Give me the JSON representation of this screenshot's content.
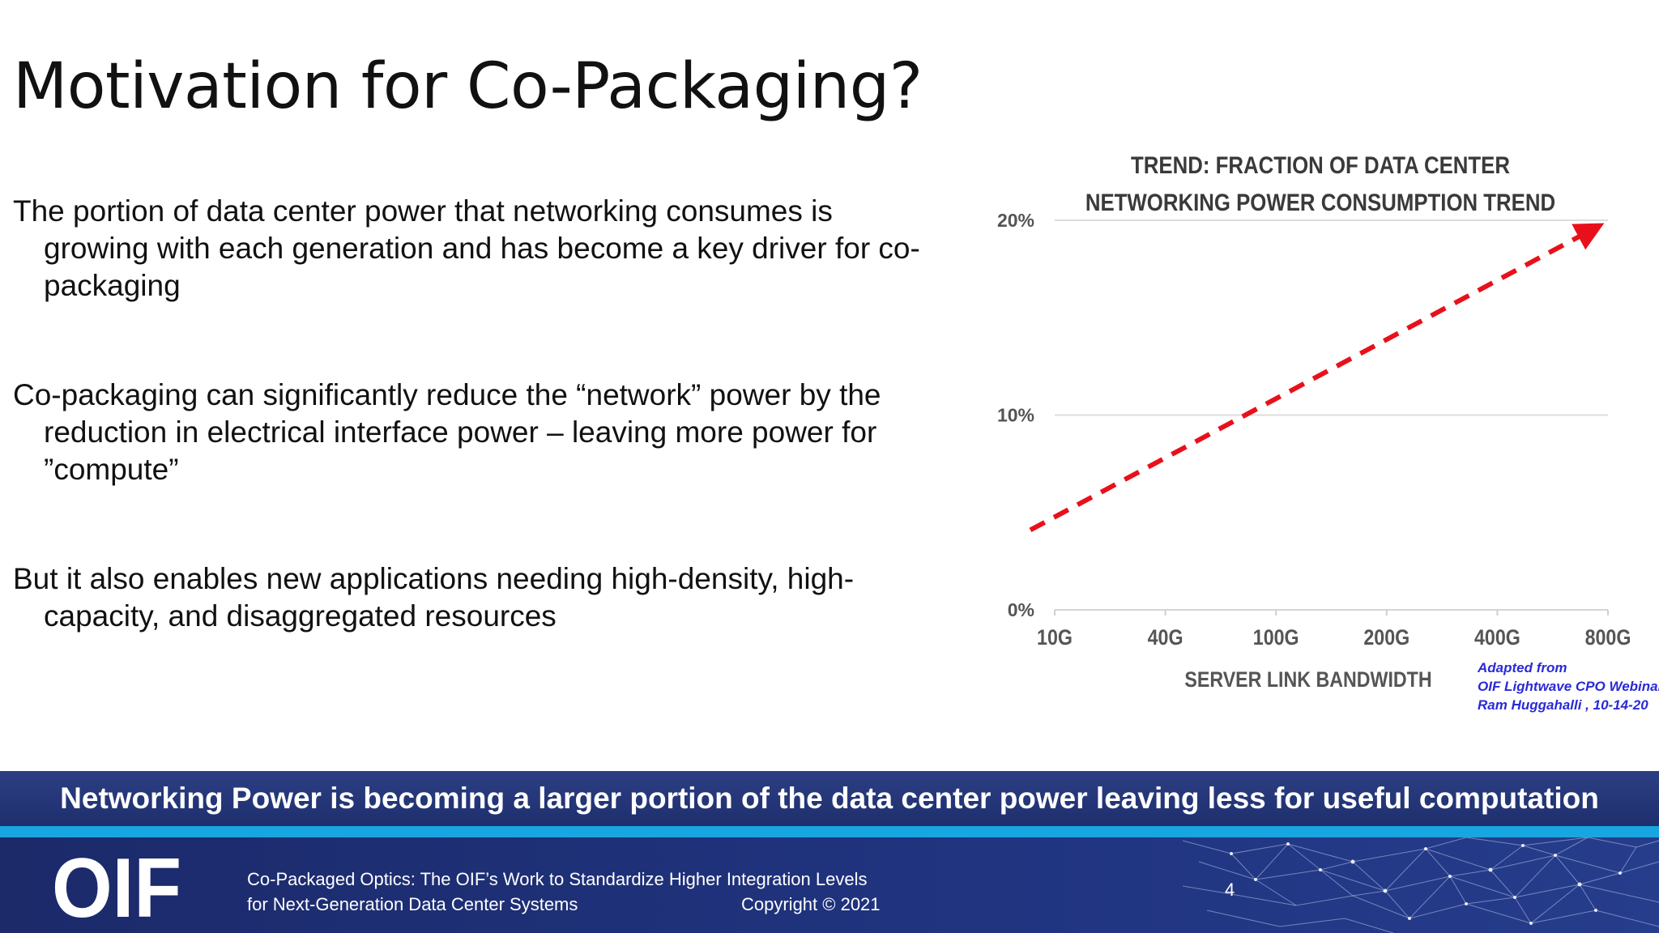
{
  "slide": {
    "title": "Motivation for Co-Packaging?",
    "bullets": [
      "The portion of data center power that networking consumes is growing with each generation and has become a key driver for co-packaging",
      "Co-packaging can significantly reduce the “network” power by the reduction in electrical interface power – leaving more power for ”compute”",
      "But it also enables new applications needing high-density, high-capacity, and disaggregated resources"
    ],
    "credit": [
      "Adapted from",
      "OIF Lightwave CPO Webinar,",
      "Ram Huggahalli , 10-14-20"
    ],
    "banner": "Networking Power is becoming a larger portion of the data center power leaving less for useful computation"
  },
  "footer": {
    "logo_text": "OIF",
    "line1": "Co-Packaged Optics: The OIF’s Work to Standardize Higher Integration Levels",
    "line2": "for Next-Generation Data Center Systems",
    "copyright": "Copyright © 2021",
    "page": "4"
  },
  "colors": {
    "trend_line": "#e8111b",
    "banner": "#25377a",
    "stripe": "#17a6e0",
    "footer": "#1f2f74",
    "credit": "#2a2ad6"
  },
  "chart_data": {
    "type": "line",
    "title_lines": [
      "TREND: FRACTION OF DATA CENTER",
      "NETWORKING POWER CONSUMPTION TREND"
    ],
    "xlabel": "SERVER LINK BANDWIDTH",
    "ylabel": "",
    "categories": [
      "10G",
      "40G",
      "100G",
      "200G",
      "400G",
      "800G"
    ],
    "y_ticks": [
      "0%",
      "10%",
      "20%"
    ],
    "ylim": [
      0,
      20
    ],
    "series": [
      {
        "x": [
          -0.22,
          4.85
        ],
        "values": [
          4.1,
          19.5
        ],
        "style": "dashed",
        "arrow": true
      }
    ],
    "grid": true
  }
}
